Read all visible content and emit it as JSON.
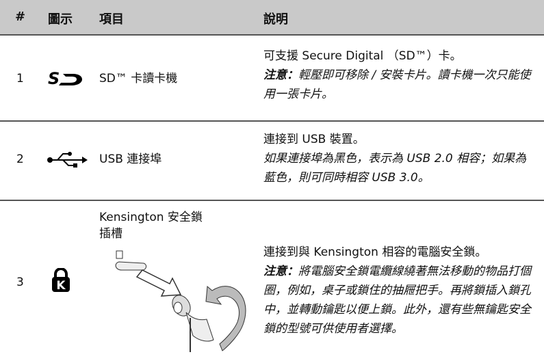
{
  "header": {
    "columns": [
      "#",
      "圖示",
      "項目",
      "說明"
    ]
  },
  "table": {
    "rows": [
      {
        "number": "1",
        "item": [
          "SD™ 卡讀卡機"
        ],
        "description": "可支援 Secure Digital （SD™）卡。",
        "note_label": "注意：",
        "note": "輕壓即可移除 / 安裝卡片。讀卡機一次只能使用一張卡片。"
      },
      {
        "number": "2",
        "item": [
          "USB 連接埠"
        ],
        "description": "連接到 USB 裝置。",
        "note": "如果連接埠為黑色，表示為 USB 2.0 相容；如果為藍色，則可同時相容 USB 3.0。"
      },
      {
        "number": "3",
        "item": [
          "Kensington 安全鎖",
          "插槽"
        ],
        "description": "連接到與 Kensington 相容的電腦安全鎖。",
        "note_label": "注意：",
        "note": "將電腦安全鎖電纜線繞著無法移動的物品打個圈，例如，桌子或鎖住的抽屜把手。再將鎖插入鎖孔中，並轉動鑰匙以便上鎖。此外，還有些無鑰匙安全鎖的型號可供使用者選擇。"
      }
    ]
  }
}
